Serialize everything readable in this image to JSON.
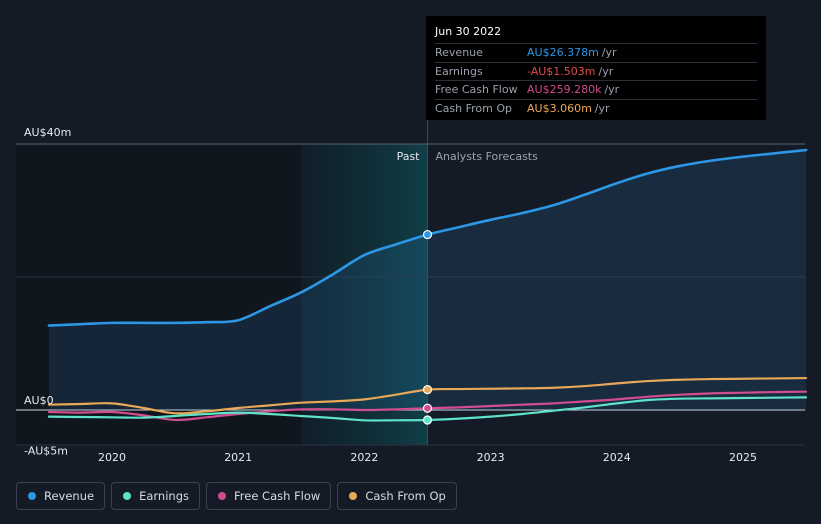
{
  "chart_data": {
    "type": "line",
    "y_unit": "AU$ m",
    "ylim": [
      -5,
      40
    ],
    "y_tick_labels": [
      {
        "value": 40,
        "label": "AU$40m"
      },
      {
        "value": 0,
        "label": "AU$0"
      },
      {
        "value": -5,
        "label": "-AU$5m"
      }
    ],
    "x_tick_labels": [
      {
        "value": 2020,
        "label": "2020"
      },
      {
        "value": 2021,
        "label": "2021"
      },
      {
        "value": 2022,
        "label": "2022"
      },
      {
        "value": 2023,
        "label": "2023"
      },
      {
        "value": 2024,
        "label": "2024"
      },
      {
        "value": 2025,
        "label": "2025"
      }
    ],
    "xlim": [
      2019.25,
      2025.5
    ],
    "divider_x": 2022.5,
    "highlight_start_x": 2021.5,
    "past_label": "Past",
    "forecast_label": "Analysts Forecasts",
    "series": [
      {
        "name": "Revenue",
        "color": "#2d97e6",
        "fill": true,
        "points": [
          [
            2019.5,
            12.7
          ],
          [
            2019.75,
            12.9
          ],
          [
            2020.0,
            13.1
          ],
          [
            2020.25,
            13.1
          ],
          [
            2020.5,
            13.1
          ],
          [
            2020.75,
            13.2
          ],
          [
            2021.0,
            13.5
          ],
          [
            2021.25,
            15.6
          ],
          [
            2021.5,
            17.7
          ],
          [
            2021.75,
            20.4
          ],
          [
            2022.0,
            23.3
          ],
          [
            2022.25,
            24.9
          ],
          [
            2022.5,
            26.378
          ],
          [
            2022.75,
            27.5
          ],
          [
            2023.0,
            28.6
          ],
          [
            2023.25,
            29.6
          ],
          [
            2023.5,
            30.8
          ],
          [
            2023.75,
            32.4
          ],
          [
            2024.0,
            34.1
          ],
          [
            2024.25,
            35.6
          ],
          [
            2024.5,
            36.7
          ],
          [
            2024.75,
            37.5
          ],
          [
            2025.0,
            38.1
          ],
          [
            2025.25,
            38.6
          ],
          [
            2025.5,
            39.1
          ]
        ]
      },
      {
        "name": "Earnings",
        "color": "#5ee2c8",
        "points": [
          [
            2019.5,
            -1.0
          ],
          [
            2019.75,
            -1.05
          ],
          [
            2020.0,
            -1.1
          ],
          [
            2020.25,
            -1.15
          ],
          [
            2020.5,
            -0.9
          ],
          [
            2020.75,
            -0.6
          ],
          [
            2021.0,
            -0.4
          ],
          [
            2021.25,
            -0.6
          ],
          [
            2021.5,
            -0.9
          ],
          [
            2021.75,
            -1.2
          ],
          [
            2022.0,
            -1.55
          ],
          [
            2022.25,
            -1.55
          ],
          [
            2022.5,
            -1.503
          ],
          [
            2022.75,
            -1.3
          ],
          [
            2023.0,
            -1.0
          ],
          [
            2023.25,
            -0.6
          ],
          [
            2023.5,
            -0.1
          ],
          [
            2023.75,
            0.4
          ],
          [
            2024.0,
            1.0
          ],
          [
            2024.25,
            1.5
          ],
          [
            2024.5,
            1.7
          ],
          [
            2024.75,
            1.75
          ],
          [
            2025.0,
            1.8
          ],
          [
            2025.25,
            1.85
          ],
          [
            2025.5,
            1.9
          ]
        ]
      },
      {
        "name": "Free Cash Flow",
        "color": "#d04d8f",
        "points": [
          [
            2019.5,
            -0.3
          ],
          [
            2019.75,
            -0.4
          ],
          [
            2020.0,
            -0.3
          ],
          [
            2020.25,
            -0.8
          ],
          [
            2020.5,
            -1.5
          ],
          [
            2020.75,
            -1.1
          ],
          [
            2021.0,
            -0.6
          ],
          [
            2021.25,
            -0.2
          ],
          [
            2021.5,
            0.1
          ],
          [
            2021.75,
            0.1
          ],
          [
            2022.0,
            0.0
          ],
          [
            2022.25,
            0.1
          ],
          [
            2022.5,
            0.259
          ],
          [
            2022.75,
            0.4
          ],
          [
            2023.0,
            0.6
          ],
          [
            2023.25,
            0.8
          ],
          [
            2023.5,
            1.0
          ],
          [
            2023.75,
            1.3
          ],
          [
            2024.0,
            1.6
          ],
          [
            2024.25,
            2.0
          ],
          [
            2024.5,
            2.3
          ],
          [
            2024.75,
            2.5
          ],
          [
            2025.0,
            2.6
          ],
          [
            2025.25,
            2.7
          ],
          [
            2025.5,
            2.75
          ]
        ]
      },
      {
        "name": "Cash From Op",
        "color": "#e9a857",
        "points": [
          [
            2019.5,
            0.8
          ],
          [
            2019.75,
            0.9
          ],
          [
            2020.0,
            1.0
          ],
          [
            2020.25,
            0.3
          ],
          [
            2020.5,
            -0.5
          ],
          [
            2020.75,
            -0.2
          ],
          [
            2021.0,
            0.3
          ],
          [
            2021.25,
            0.7
          ],
          [
            2021.5,
            1.1
          ],
          [
            2021.75,
            1.3
          ],
          [
            2022.0,
            1.6
          ],
          [
            2022.25,
            2.3
          ],
          [
            2022.5,
            3.06
          ],
          [
            2022.75,
            3.15
          ],
          [
            2023.0,
            3.2
          ],
          [
            2023.25,
            3.25
          ],
          [
            2023.5,
            3.35
          ],
          [
            2023.75,
            3.6
          ],
          [
            2024.0,
            4.0
          ],
          [
            2024.25,
            4.35
          ],
          [
            2024.5,
            4.55
          ],
          [
            2024.75,
            4.65
          ],
          [
            2025.0,
            4.7
          ],
          [
            2025.25,
            4.75
          ],
          [
            2025.5,
            4.8
          ]
        ]
      }
    ]
  },
  "tooltip": {
    "date": "Jun 30 2022",
    "rows": [
      {
        "label": "Revenue",
        "value": "AU$26.378m",
        "unit": "/yr",
        "color": "#2d97e6"
      },
      {
        "label": "Earnings",
        "value": "-AU$1.503m",
        "unit": "/yr",
        "color": "#e54b4b"
      },
      {
        "label": "Free Cash Flow",
        "value": "AU$259.280k",
        "unit": "/yr",
        "color": "#d04d8f"
      },
      {
        "label": "Cash From Op",
        "value": "AU$3.060m",
        "unit": "/yr",
        "color": "#e9a857"
      }
    ]
  },
  "legend": [
    {
      "label": "Revenue",
      "color": "#2d97e6"
    },
    {
      "label": "Earnings",
      "color": "#5ee2c8"
    },
    {
      "label": "Free Cash Flow",
      "color": "#d04d8f"
    },
    {
      "label": "Cash From Op",
      "color": "#e9a857"
    }
  ]
}
